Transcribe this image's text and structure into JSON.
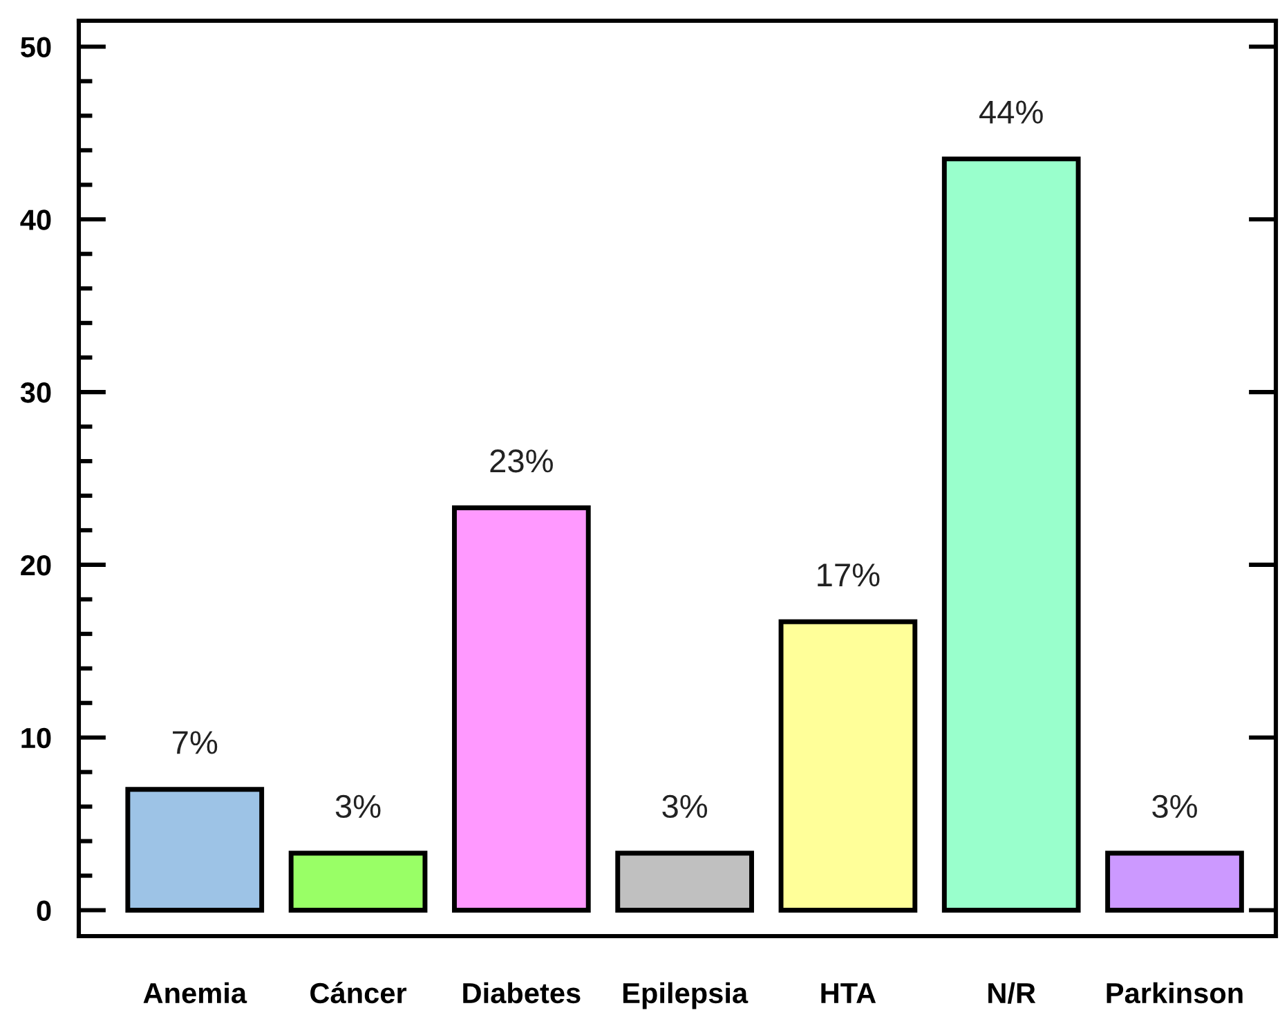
{
  "chart_data": {
    "type": "bar",
    "categories": [
      "Anemia",
      "Cáncer",
      "Diabetes",
      "Epilepsia",
      "HTA",
      "N/R",
      "Parkinson"
    ],
    "values": [
      7,
      3.3,
      23.3,
      3.3,
      16.7,
      43.5,
      3.3
    ],
    "value_labels": [
      "7%",
      "3%",
      "23%",
      "3%",
      "17%",
      "44%",
      "3%"
    ],
    "colors": [
      "#9dc3e6",
      "#99ff66",
      "#ff99ff",
      "#c0c0c0",
      "#ffff99",
      "#99ffcc",
      "#cc99ff"
    ],
    "ylim": [
      -1.5,
      51.5
    ],
    "yticks": [
      0,
      {
        "value": 2,
        "label": null
      },
      {
        "value": 4,
        "label": null
      },
      {
        "value": 6,
        "label": null
      },
      {
        "value": 8,
        "label": null
      },
      10,
      {
        "value": 12,
        "label": null
      },
      {
        "value": 14,
        "label": null
      },
      {
        "value": 16,
        "label": null
      },
      {
        "value": 18,
        "label": null
      },
      20,
      {
        "value": 22,
        "label": null
      },
      {
        "value": 24,
        "label": null
      },
      {
        "value": 26,
        "label": null
      },
      {
        "value": 28,
        "label": null
      },
      30,
      {
        "value": 32,
        "label": null
      },
      {
        "value": 34,
        "label": null
      },
      {
        "value": 36,
        "label": null
      },
      {
        "value": 38,
        "label": null
      },
      40,
      {
        "value": 42,
        "label": null
      },
      {
        "value": 44,
        "label": null
      },
      {
        "value": 46,
        "label": null
      },
      {
        "value": 48,
        "label": null
      },
      50
    ]
  }
}
